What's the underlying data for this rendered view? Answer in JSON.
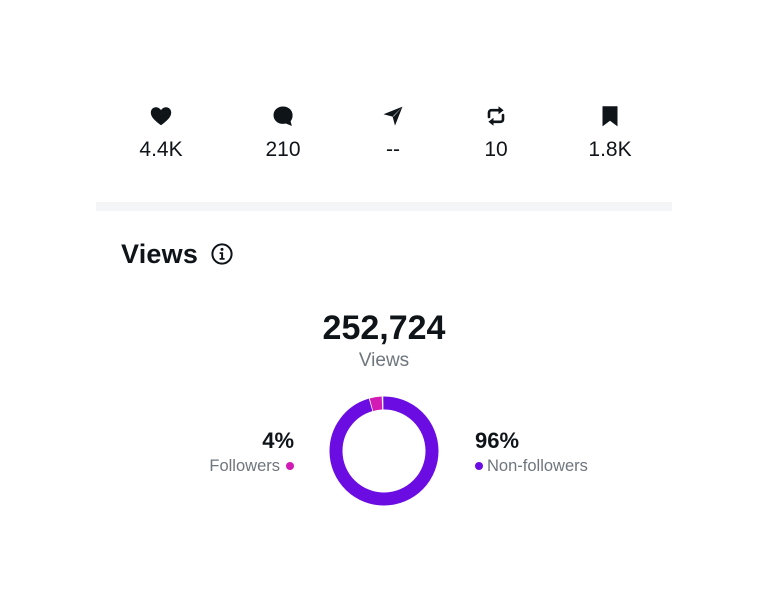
{
  "engagement": {
    "likes": {
      "icon": "heart-icon",
      "count": "4.4K"
    },
    "replies": {
      "icon": "reply-bubble-icon",
      "count": "210"
    },
    "shares": {
      "icon": "share-arrow-icon",
      "count": "--"
    },
    "reposts": {
      "icon": "repost-icon",
      "count": "10"
    },
    "bookmarks": {
      "icon": "bookmark-icon",
      "count": "1.8K"
    }
  },
  "views": {
    "title": "Views",
    "info_icon": "info-icon",
    "total": "252,724",
    "total_label": "Views",
    "followers": {
      "label": "Followers",
      "percent": "4%",
      "value": 4,
      "color": "#d21bb4"
    },
    "non_followers": {
      "label": "Non-followers",
      "percent": "96%",
      "value": 96,
      "color": "#6b0ce3"
    }
  },
  "colors": {
    "text_primary": "#0f1419",
    "text_secondary": "#6e767d",
    "divider": "#f4f5f6"
  }
}
